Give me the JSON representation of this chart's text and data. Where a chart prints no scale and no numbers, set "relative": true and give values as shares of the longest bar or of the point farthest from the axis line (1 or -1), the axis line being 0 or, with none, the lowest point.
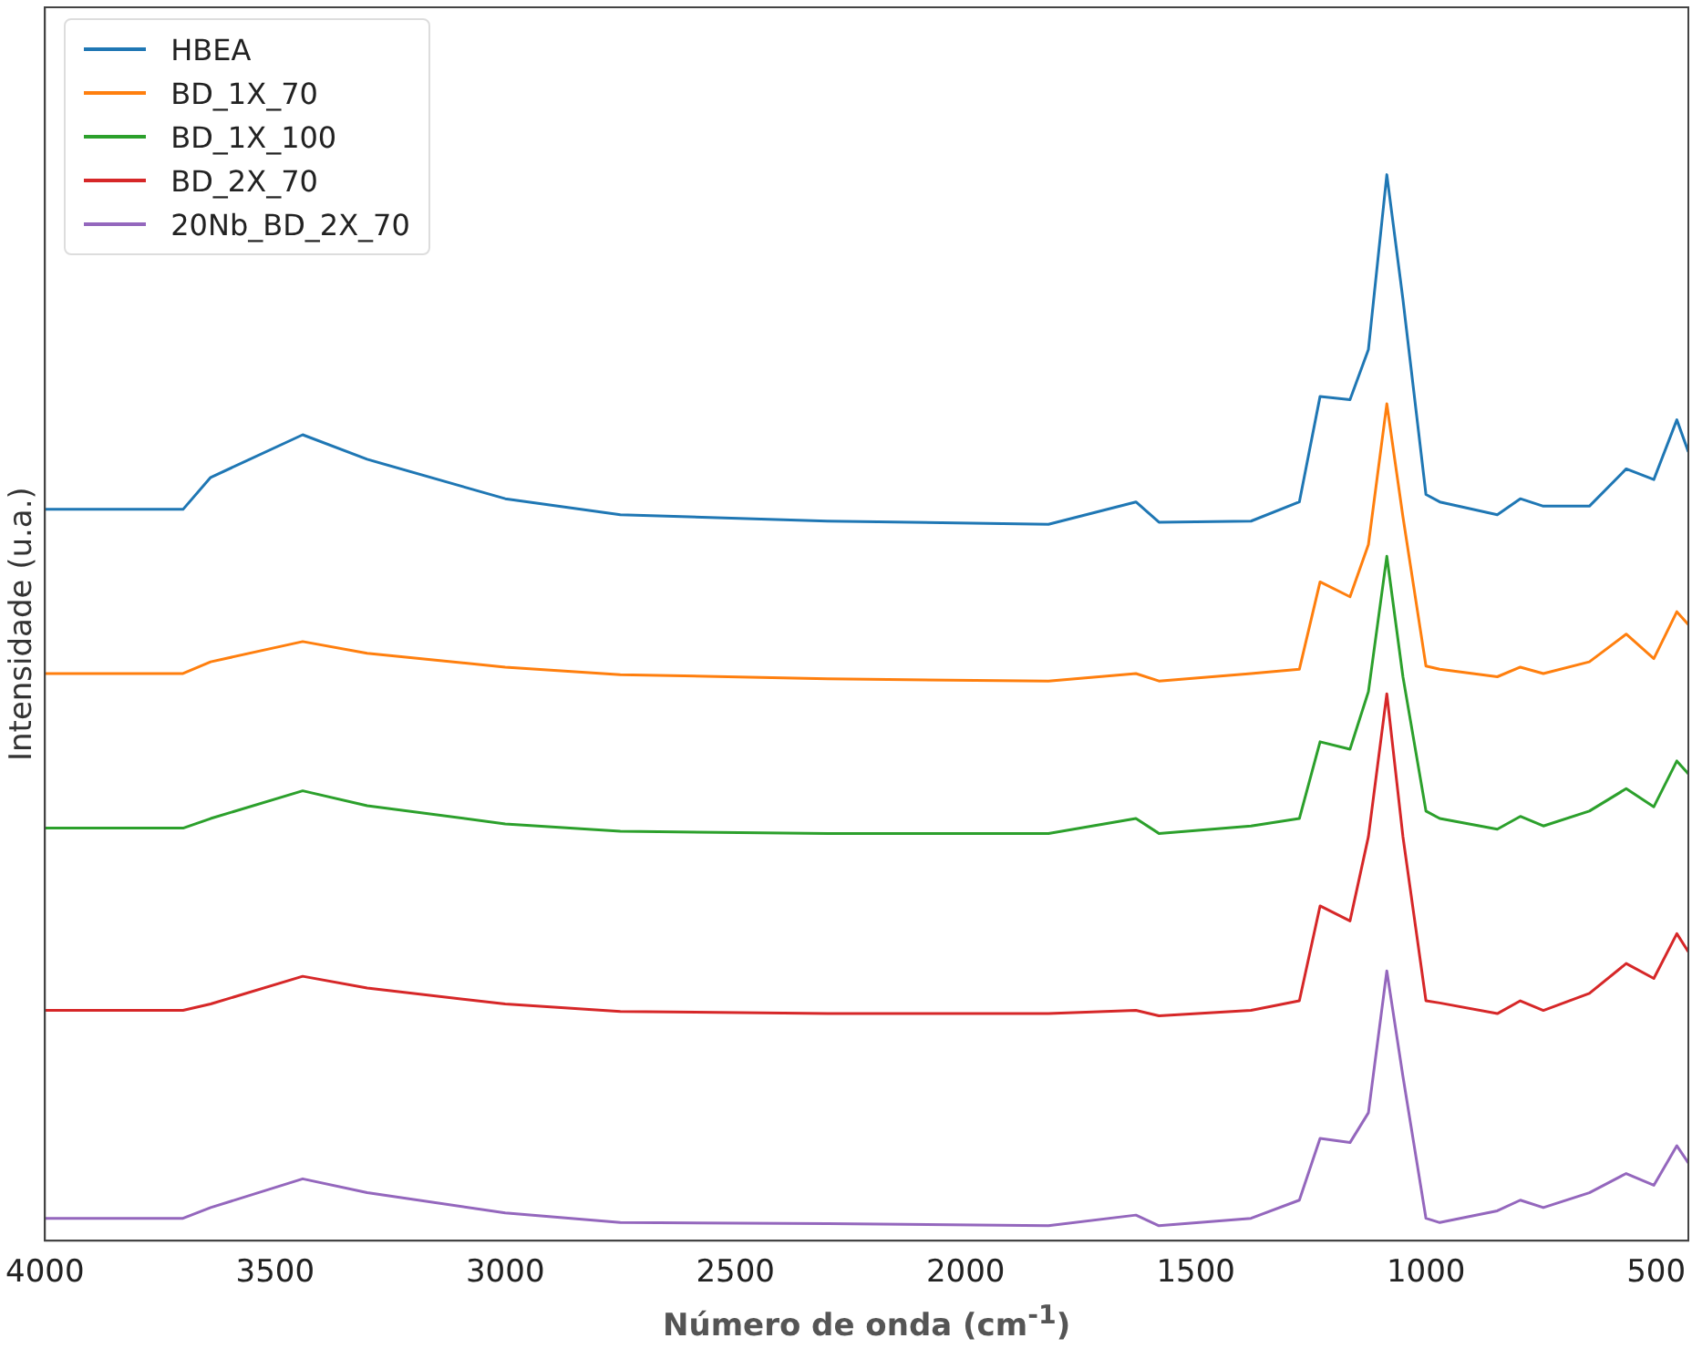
{
  "chart_data": {
    "type": "line",
    "xlabel": "Número de onda (cm$^{-1}$)",
    "ylabel": "Intensidade (u.a.)",
    "relative": true,
    "xlim": [
      4000,
      430
    ],
    "xticks": [
      4000,
      3500,
      3000,
      2500,
      2000,
      1500,
      1000,
      500
    ],
    "tick_labels": "x",
    "legend": "top left",
    "marker": "none",
    "line_style": "solid",
    "grid": false,
    "x": [
      4000,
      3700,
      3640,
      3440,
      3300,
      3000,
      2750,
      2300,
      1820,
      1630,
      1580,
      1380,
      1275,
      1230,
      1165,
      1125,
      1085,
      1050,
      1000,
      970,
      845,
      795,
      745,
      645,
      565,
      505,
      455,
      430
    ],
    "series": [
      {
        "name": "HBEA",
        "color": "#1f77b4",
        "values": [
          0.686,
          0.686,
          0.716,
          0.756,
          0.733,
          0.696,
          0.681,
          0.675,
          0.672,
          0.693,
          0.674,
          0.675,
          0.693,
          0.792,
          0.789,
          0.836,
          1.0,
          0.883,
          0.7,
          0.693,
          0.681,
          0.696,
          0.689,
          0.689,
          0.724,
          0.714,
          0.77,
          0.74
        ]
      },
      {
        "name": "BD_1X_70",
        "color": "#ff7f0e",
        "values": [
          0.532,
          0.532,
          0.543,
          0.562,
          0.551,
          0.538,
          0.531,
          0.527,
          0.525,
          0.532,
          0.525,
          0.532,
          0.536,
          0.618,
          0.604,
          0.653,
          0.785,
          0.679,
          0.539,
          0.536,
          0.529,
          0.538,
          0.532,
          0.543,
          0.569,
          0.546,
          0.59,
          0.578
        ]
      },
      {
        "name": "BD_1X_100",
        "color": "#2ca02c",
        "values": [
          0.387,
          0.387,
          0.396,
          0.422,
          0.408,
          0.391,
          0.384,
          0.382,
          0.382,
          0.396,
          0.382,
          0.389,
          0.396,
          0.468,
          0.461,
          0.515,
          0.642,
          0.529,
          0.403,
          0.396,
          0.386,
          0.398,
          0.389,
          0.403,
          0.424,
          0.407,
          0.45,
          0.438
        ]
      },
      {
        "name": "BD_2X_70",
        "color": "#d62728",
        "values": [
          0.216,
          0.216,
          0.222,
          0.248,
          0.237,
          0.222,
          0.215,
          0.213,
          0.213,
          0.216,
          0.211,
          0.216,
          0.225,
          0.314,
          0.3,
          0.379,
          0.513,
          0.379,
          0.225,
          0.223,
          0.213,
          0.225,
          0.216,
          0.232,
          0.26,
          0.246,
          0.288,
          0.271
        ]
      },
      {
        "name": "20Nb_BD_2X_70",
        "color": "#9467bd",
        "values": [
          0.021,
          0.021,
          0.031,
          0.058,
          0.045,
          0.026,
          0.017,
          0.016,
          0.014,
          0.024,
          0.014,
          0.021,
          0.038,
          0.096,
          0.092,
          0.12,
          0.253,
          0.154,
          0.021,
          0.017,
          0.028,
          0.038,
          0.031,
          0.045,
          0.063,
          0.052,
          0.089,
          0.073
        ]
      }
    ]
  }
}
